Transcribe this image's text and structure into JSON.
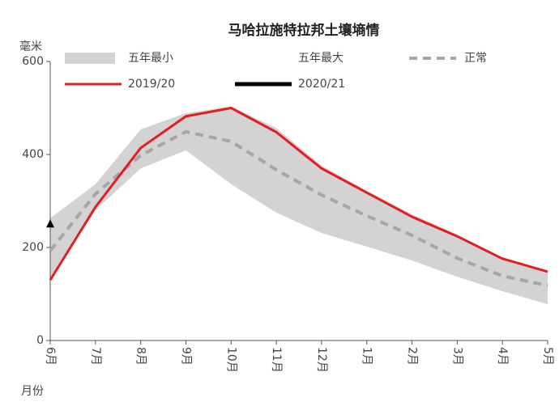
{
  "chart_data": {
    "type": "line",
    "title": "马哈拉施特拉邦土壤墒情",
    "y_label": "毫米",
    "x_label": "月份",
    "categories": [
      "6月",
      "7月",
      "8月",
      "9月",
      "10月",
      "11月",
      "12月",
      "1月",
      "2月",
      "3月",
      "4月",
      "5月"
    ],
    "ylim": [
      0,
      600
    ],
    "yticks": [
      0,
      200,
      400,
      600
    ],
    "series": [
      {
        "name": "五年最小",
        "color": "#d3d3d3",
        "style": "band",
        "values": [
          132,
          280,
          370,
          409,
          336,
          275,
          231,
          202,
          172,
          137,
          106,
          78
        ]
      },
      {
        "name": "五年最大",
        "color": "#d3d3d3",
        "style": "band",
        "values": [
          263,
          336,
          454,
          489,
          503,
          457,
          376,
          322,
          271,
          228,
          179,
          148
        ]
      },
      {
        "name": "正常",
        "color": "#a6a6a6",
        "style": "dashed",
        "values": [
          193,
          315,
          398,
          449,
          428,
          367,
          313,
          268,
          226,
          177,
          139,
          118
        ]
      },
      {
        "name": "2019/20",
        "color": "#e02020",
        "style": "solid",
        "values": [
          130,
          287,
          414,
          482,
          500,
          448,
          370,
          318,
          266,
          224,
          176,
          148
        ]
      },
      {
        "name": "2020/21",
        "color": "#000000",
        "style": "marker",
        "values": [
          250,
          null,
          null,
          null,
          null,
          null,
          null,
          null,
          null,
          null,
          null,
          null
        ]
      }
    ]
  }
}
